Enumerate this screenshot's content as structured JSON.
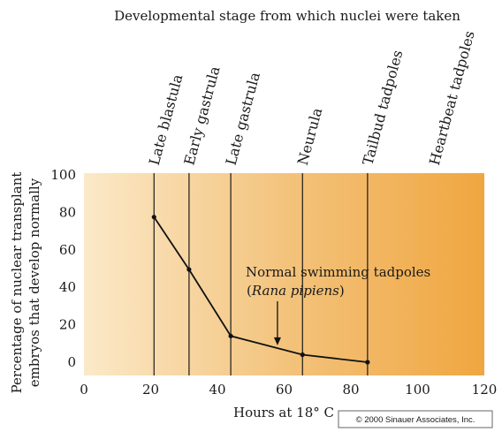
{
  "chart_data": {
    "type": "line",
    "title": "Developmental stage from which nuclei were taken",
    "xlabel": "Hours at 18° C",
    "ylabel_line1": "Percentage  of nuclear transplant",
    "ylabel_line2": "embryos that develop normally",
    "xlim": [
      0,
      120
    ],
    "ylim": [
      0,
      100
    ],
    "xticks": [
      0,
      20,
      40,
      60,
      80,
      100,
      120
    ],
    "yticks": [
      0,
      20,
      40,
      60,
      80,
      100
    ],
    "x": [
      21,
      31.5,
      44,
      65.5,
      85
    ],
    "y": [
      77.5,
      49.5,
      14,
      4,
      0
    ],
    "stages": [
      {
        "label": "Late blastula",
        "x": 21
      },
      {
        "label": "Early gastrula",
        "x": 31.5
      },
      {
        "label": "Late gastrula",
        "x": 44
      },
      {
        "label": "Neurula",
        "x": 65.5
      },
      {
        "label": "Tailbud tadpoles",
        "x": 85
      },
      {
        "label": "Heartbeat tadpoles",
        "x": 105
      }
    ],
    "annotation": {
      "line1": "Normal swimming tadpoles",
      "line2": "(Rana pipiens)",
      "arrow_x": 58,
      "arrow_y": 9
    },
    "colors": {
      "light": "#fbe9c8",
      "dark": "#f0a640",
      "line": "#111111"
    },
    "credit": "© 2000 Sinauer Associates, Inc."
  }
}
